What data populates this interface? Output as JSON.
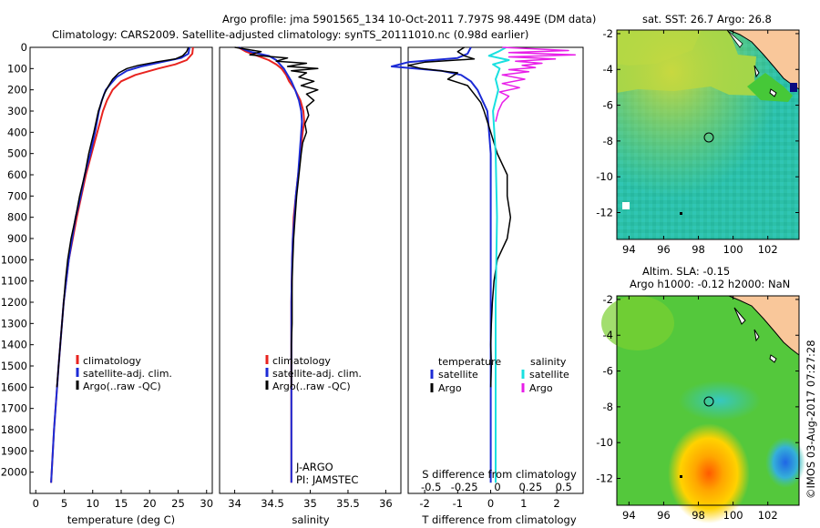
{
  "title_line1": "Argo profile: jma 5901565_134 10-Oct-2011 7.797S 98.449E (DM data)",
  "title_line2": "Climatology: CARS2009. Satellite-adjusted climatology: synTS_20111010.nc (0.98d earlier)",
  "colors": {
    "climatology": "#e8231f",
    "satellite": "#1c2bd6",
    "argo": "#000000",
    "sal_sat": "#19e0e0",
    "sal_argo": "#e81ee8",
    "land": "#f9c79a"
  },
  "chart_data": [
    {
      "type": "line",
      "xlabel": "temperature (deg C)",
      "xlim": [
        -1,
        31
      ],
      "xticks": [
        "0",
        "5",
        "10",
        "15",
        "20",
        "25",
        "30"
      ],
      "ylim": [
        2100,
        0
      ],
      "yticks": [
        "0",
        "100",
        "200",
        "300",
        "400",
        "500",
        "600",
        "700",
        "800",
        "900",
        "1000",
        "1100",
        "1200",
        "1300",
        "1400",
        "1500",
        "1600",
        "1700",
        "1800",
        "1900",
        "2000"
      ],
      "legend": [
        "climatology",
        "satellite-adj. clim.",
        "Argo(..raw -QC)"
      ],
      "series": [
        {
          "name": "climatology",
          "depth": [
            0,
            30,
            60,
            80,
            100,
            130,
            160,
            200,
            250,
            300,
            400,
            500,
            600,
            700,
            800,
            1000,
            1200,
            1500,
            1800,
            2050
          ],
          "values": [
            27.6,
            27.5,
            26.5,
            24.5,
            21.5,
            17.5,
            15.0,
            13.5,
            12.5,
            11.8,
            10.8,
            9.8,
            8.8,
            8.0,
            7.2,
            5.8,
            4.9,
            4.0,
            3.2,
            2.7
          ]
        },
        {
          "name": "satellite-adj. clim.",
          "depth": [
            0,
            30,
            50,
            70,
            90,
            110,
            140,
            170,
            200,
            250,
            300,
            400,
            500,
            600,
            700,
            800,
            1000,
            1200,
            1500,
            1800,
            2050
          ],
          "values": [
            27.0,
            26.8,
            25.5,
            22.0,
            18.5,
            16.0,
            14.2,
            13.2,
            12.3,
            11.6,
            11.1,
            10.4,
            9.6,
            8.6,
            7.9,
            7.0,
            5.8,
            4.9,
            4.0,
            3.2,
            2.7
          ]
        },
        {
          "name": "Argo(..raw -QC)",
          "depth": [
            0,
            20,
            40,
            55,
            70,
            85,
            100,
            120,
            150,
            180,
            220,
            260,
            300,
            400,
            500,
            600,
            700,
            800,
            900,
            1000,
            1100,
            1200,
            1300,
            1400,
            1500,
            1600
          ],
          "values": [
            26.8,
            26.5,
            25.8,
            24.5,
            21.0,
            18.0,
            16.0,
            14.6,
            13.5,
            12.8,
            12.0,
            11.5,
            11.0,
            10.2,
            9.3,
            8.6,
            7.7,
            7.0,
            6.2,
            5.6,
            5.2,
            4.9,
            4.6,
            4.3,
            4.0,
            3.7
          ]
        }
      ]
    },
    {
      "type": "line",
      "xlabel": "salinity",
      "xlim": [
        33.8,
        36.2
      ],
      "xticks": [
        "34",
        "34.5",
        "35",
        "35.5",
        "36"
      ],
      "ylim": [
        2100,
        0
      ],
      "legend": [
        "climatology",
        "satellite-adj. clim.",
        "Argo(..raw -QC)"
      ],
      "annotation_line1": "J-ARGO",
      "annotation_line2": "PI: JAMSTEC",
      "series": [
        {
          "name": "climatology",
          "depth": [
            0,
            20,
            40,
            60,
            80,
            100,
            130,
            160,
            200,
            250,
            300,
            350,
            400,
            500,
            600,
            700,
            800,
            900,
            1000,
            1200,
            1500,
            1800,
            2050
          ],
          "values": [
            34.05,
            34.15,
            34.3,
            34.45,
            34.55,
            34.62,
            34.68,
            34.72,
            34.8,
            34.87,
            34.91,
            34.92,
            34.9,
            34.87,
            34.84,
            34.81,
            34.78,
            34.77,
            34.76,
            34.75,
            34.75,
            34.75,
            34.75
          ]
        },
        {
          "name": "satellite-adj. clim.",
          "depth": [
            0,
            20,
            40,
            60,
            80,
            100,
            130,
            160,
            200,
            250,
            300,
            350,
            400,
            500,
            600,
            700,
            800,
            900,
            1000,
            1200,
            1500,
            1800,
            2050
          ],
          "values": [
            34.05,
            34.2,
            34.45,
            34.55,
            34.6,
            34.65,
            34.7,
            34.75,
            34.8,
            34.85,
            34.88,
            34.89,
            34.88,
            34.86,
            34.84,
            34.81,
            34.79,
            34.77,
            34.76,
            34.75,
            34.75,
            34.75,
            34.75
          ]
        },
        {
          "name": "Argo(..raw -QC)",
          "depth": [
            0,
            20,
            35,
            50,
            65,
            75,
            90,
            100,
            110,
            120,
            140,
            160,
            180,
            200,
            220,
            250,
            280,
            320,
            360,
            400,
            450,
            500,
            600,
            700,
            800,
            900,
            1000,
            1100,
            1200,
            1300,
            1400,
            1500,
            1600
          ],
          "values": [
            34.0,
            34.35,
            34.2,
            34.7,
            34.55,
            34.95,
            34.7,
            35.1,
            34.75,
            34.95,
            34.85,
            35.05,
            34.88,
            35.1,
            34.95,
            35.05,
            34.95,
            34.98,
            34.93,
            34.95,
            34.9,
            34.88,
            34.85,
            34.82,
            34.8,
            34.78,
            34.77,
            34.76,
            34.76,
            34.76,
            34.75,
            34.75,
            34.75
          ]
        }
      ]
    },
    {
      "type": "line",
      "xlabel": "T difference from climatology",
      "xlabel_top": "S difference from climatology",
      "xlim": [
        -2.5,
        2.8
      ],
      "xticks": [
        "-2",
        "-1",
        "0",
        "1",
        "2"
      ],
      "sticks": [
        "-0.5",
        "-0.25",
        "0",
        "0.25",
        "0.5"
      ],
      "ylim": [
        2100,
        0
      ],
      "legend_left_title": "temperature",
      "legend_right_title": "salinity",
      "legend_entries": [
        "satellite",
        "Argo",
        "satellite",
        "Argo"
      ],
      "series": [
        {
          "name": "T satellite",
          "depth": [
            0,
            30,
            50,
            70,
            90,
            110,
            130,
            160,
            200,
            250,
            300,
            400,
            500,
            700,
            1000,
            1500,
            2050
          ],
          "values": [
            -0.6,
            -0.7,
            -1.0,
            -2.5,
            -3.0,
            -1.5,
            -0.9,
            -0.6,
            -0.4,
            -0.25,
            -0.1,
            -0.05,
            0,
            0,
            0,
            0,
            0
          ]
        },
        {
          "name": "T Argo",
          "depth": [
            0,
            20,
            40,
            55,
            70,
            85,
            100,
            120,
            150,
            180,
            220,
            260,
            300,
            400,
            500,
            600,
            700,
            800,
            900,
            1000,
            1100,
            1200,
            1300,
            1400,
            1500,
            1600
          ],
          "values": [
            -0.8,
            -1.0,
            -0.8,
            -0.5,
            -2.0,
            -2.5,
            -2.1,
            -1.0,
            -1.3,
            -0.7,
            -0.5,
            -0.3,
            -0.2,
            0,
            0.2,
            0.5,
            0.5,
            0.6,
            0.5,
            0.2,
            0.1,
            0.05,
            0.02,
            0,
            0.02,
            0
          ]
        },
        {
          "name": "S satellite",
          "depth": [
            0,
            20,
            40,
            60,
            80,
            100,
            150,
            200,
            300,
            500,
            800,
            1200,
            1600,
            2050
          ],
          "values": [
            0.08,
            0.02,
            -0.05,
            0.1,
            -0.02,
            0.03,
            0.0,
            0.02,
            -0.02,
            0.0,
            0.01,
            0.0,
            0.0,
            0.0
          ]
        },
        {
          "name": "S Argo",
          "depth": [
            0,
            15,
            25,
            35,
            45,
            55,
            65,
            75,
            85,
            95,
            105,
            115,
            130,
            150,
            170,
            190,
            210,
            230,
            260,
            300,
            350
          ],
          "values": [
            0.05,
            0.55,
            0.1,
            0.6,
            0.1,
            0.45,
            0.15,
            0.35,
            0.2,
            0.3,
            0.1,
            0.25,
            0.05,
            0.22,
            0.05,
            0.18,
            0.03,
            0.1,
            0.05,
            0.02,
            0.0
          ]
        }
      ]
    }
  ],
  "map1": {
    "title": "sat. SST: 26.7 Argo: 26.8",
    "xticks": [
      "94",
      "96",
      "98",
      "100",
      "102"
    ],
    "yticks": [
      "-2",
      "-4",
      "-6",
      "-8",
      "-10",
      "-12"
    ]
  },
  "map2": {
    "title_line1": "Altim. SLA: -0.15",
    "title_line2": "Argo h1000: -0.12 h2000: NaN",
    "xticks": [
      "94",
      "96",
      "98",
      "100",
      "102"
    ],
    "yticks": [
      "-2",
      "-4",
      "-6",
      "-8",
      "-10",
      "-12"
    ]
  },
  "credit": "©IMOS 03-Aug-2017 07:27:28"
}
